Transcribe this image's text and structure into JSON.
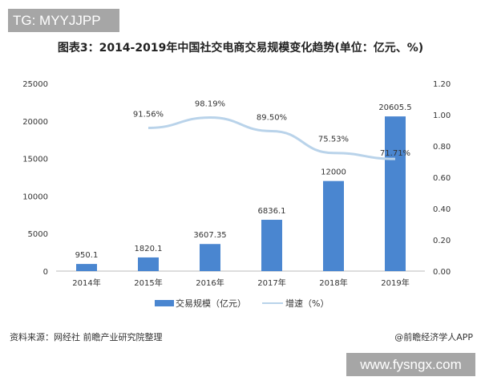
{
  "watermark_top": "TG: MYYJJPP",
  "watermark_bottom": "www.fysngx.com",
  "source": "资料来源：网经社 前瞻产业研究院整理",
  "credit": "@前瞻经济学人APP",
  "chart_data": {
    "type": "bar+line",
    "title": "图表3：2014-2019年中国社交电商交易规模变化趋势(单位：亿元、%)",
    "categories": [
      "2014年",
      "2015年",
      "2016年",
      "2017年",
      "2018年",
      "2019年"
    ],
    "series": [
      {
        "name": "交易规模（亿元）",
        "type": "bar",
        "axis": "left",
        "color": "#4a86d0",
        "values": [
          950.1,
          1820.1,
          3607.35,
          6836.1,
          12000,
          20605.5
        ],
        "labels": [
          "950.1",
          "1820.1",
          "3607.35",
          "6836.1",
          "12000",
          "20605.5"
        ]
      },
      {
        "name": "增速（%）",
        "type": "line",
        "axis": "right",
        "color": "#b9d3ea",
        "values": [
          null,
          0.9156,
          0.9819,
          0.895,
          0.7553,
          0.7171
        ],
        "labels": [
          "",
          "91.56%",
          "98.19%",
          "89.50%",
          "75.53%",
          "71.71%"
        ]
      }
    ],
    "y_left": {
      "range": [
        0,
        25000
      ],
      "ticks": [
        "0",
        "5000",
        "10000",
        "15000",
        "20000",
        "25000"
      ]
    },
    "y_right": {
      "range": [
        0,
        1.2
      ],
      "ticks": [
        "0.00",
        "0.20",
        "0.40",
        "0.60",
        "0.80",
        "1.00",
        "1.20"
      ]
    },
    "grid": false,
    "legend_position": "bottom"
  }
}
